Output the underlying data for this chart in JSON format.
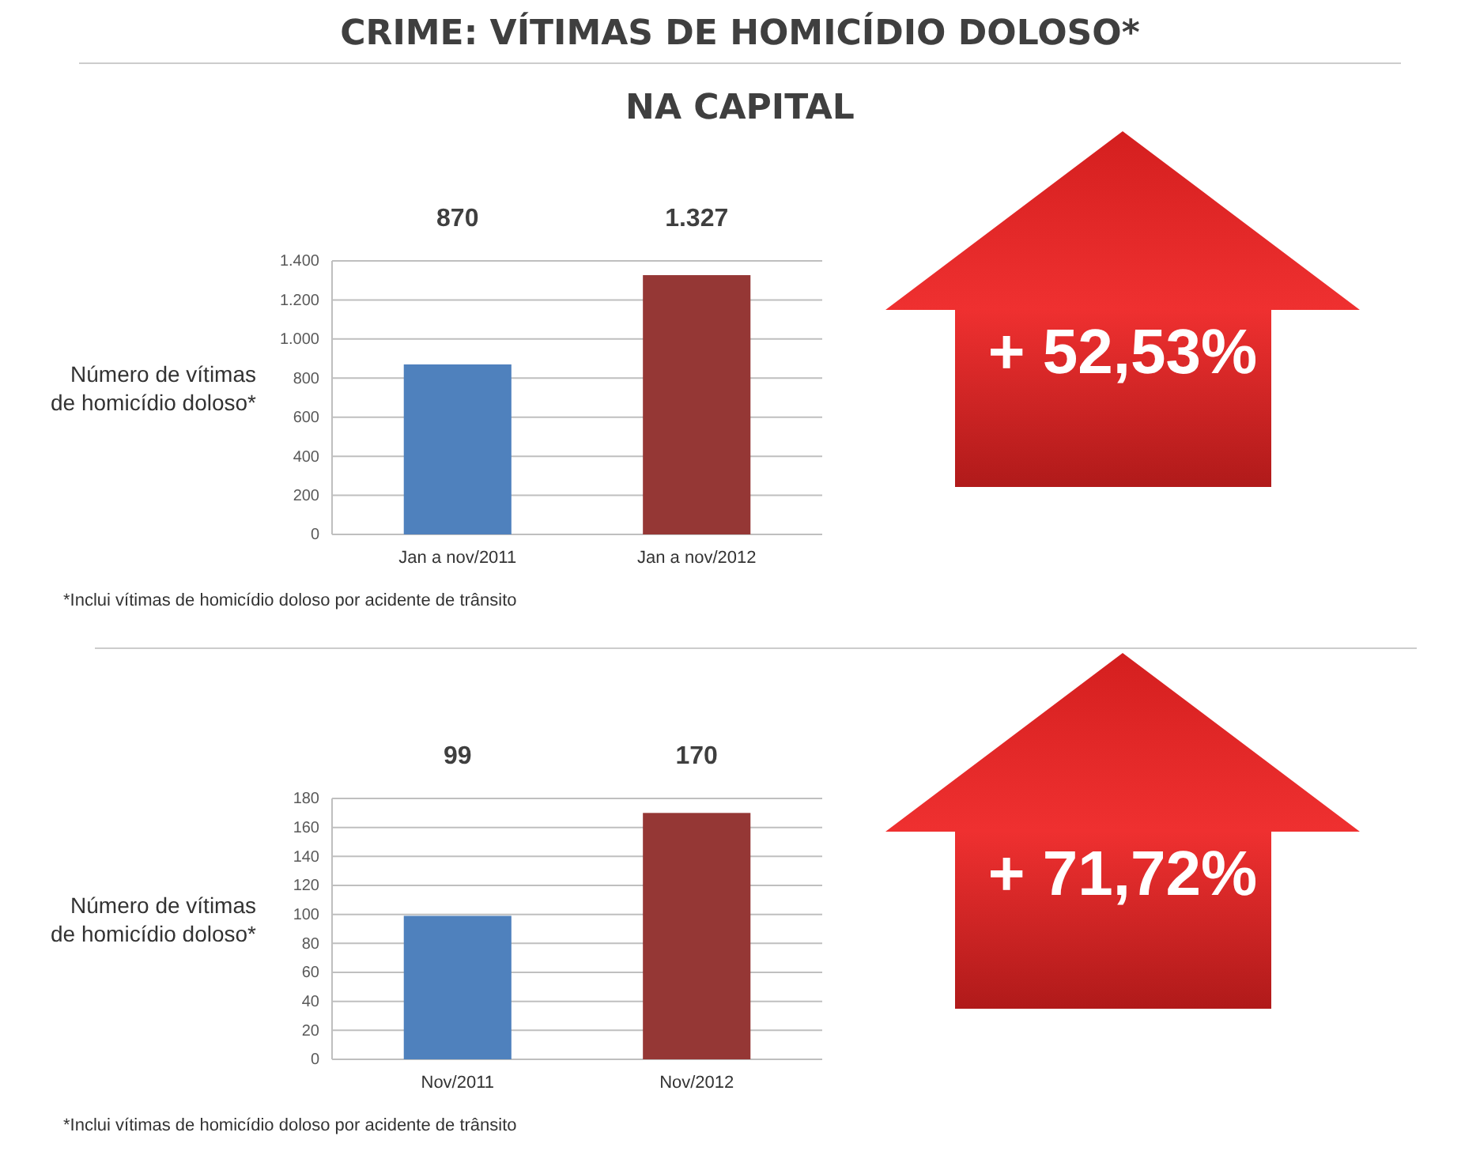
{
  "chart_data": [
    {
      "type": "bar",
      "title": "CRIME: VÍTIMAS DE HOMICÍDIO DOLOSO*",
      "subtitle": "NA CAPITAL",
      "ylabel": "Número de vítimas de homicídio doloso*",
      "categories": [
        "Jan a nov/2011",
        "Jan a nov/2012"
      ],
      "values": [
        870,
        1327
      ],
      "colors": [
        "#4f81bd",
        "#953735"
      ],
      "value_labels": [
        "870",
        "1.327"
      ],
      "ylim": [
        0,
        1400
      ],
      "yticks": [
        0,
        200,
        400,
        600,
        800,
        {
          "value": 1000,
          "label": "1.000"
        },
        {
          "value": 1200,
          "label": "1.200"
        },
        {
          "value": 1400,
          "label": "1.400"
        }
      ],
      "grid": "y",
      "annotations": [
        "+ 52,53%",
        "*Inclui vítimas de homicídio doloso por acidente de trânsito"
      ]
    },
    {
      "type": "bar",
      "ylabel": "Número de vítimas de homicídio doloso*",
      "categories": [
        "Nov/2011",
        "Nov/2012"
      ],
      "values": [
        99,
        170
      ],
      "colors": [
        "#4f81bd",
        "#953735"
      ],
      "data_labels": true,
      "ylim": [
        0,
        180
      ],
      "yticks": [
        0,
        20,
        40,
        60,
        80,
        100,
        120,
        140,
        160,
        180
      ],
      "grid": "y",
      "annotations": [
        "+ 71,72%",
        "*Inclui vítimas de homicídio doloso por acidente de trânsito"
      ]
    }
  ]
}
